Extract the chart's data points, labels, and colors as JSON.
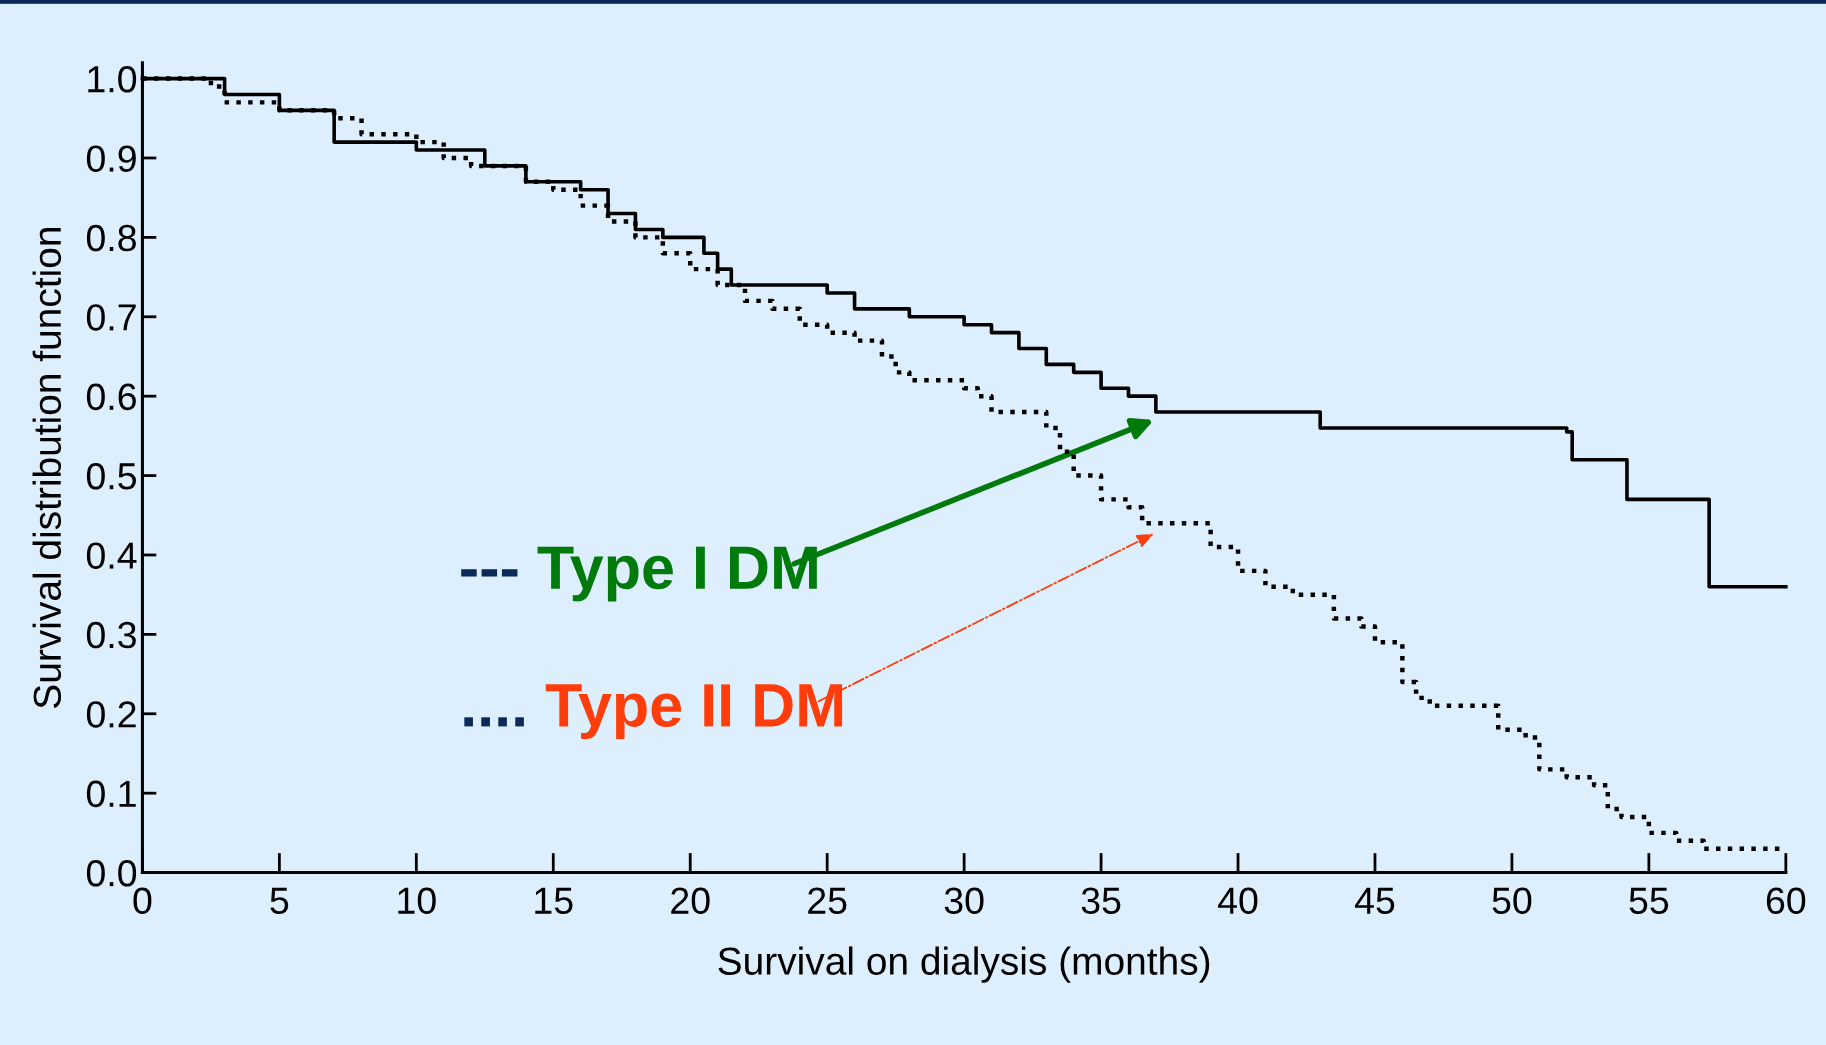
{
  "chart_data": {
    "type": "step",
    "xlabel": "Survival on dialysis (months)",
    "ylabel": "Survival distribution function",
    "xlim": [
      0,
      60
    ],
    "ylim": [
      0,
      1.02
    ],
    "xticks": [
      0,
      5,
      10,
      15,
      20,
      25,
      30,
      35,
      40,
      45,
      50,
      55,
      60
    ],
    "yticks": [
      {
        "value": 0,
        "label": "0.0"
      },
      0.1,
      0.2,
      0.3,
      0.4,
      0.5,
      0.6,
      0.7,
      0.8,
      0.9,
      {
        "value": 1,
        "label": "1.0"
      }
    ],
    "grid": false,
    "legend": false,
    "series": [
      {
        "color": "#000000",
        "line_style": "solid",
        "x": [
          0,
          2,
          3,
          4,
          5,
          6,
          7,
          9,
          10,
          12,
          12.5,
          14,
          16,
          17,
          18,
          19,
          20,
          20.5,
          21,
          21.5,
          24,
          25,
          26,
          28,
          30,
          31,
          32,
          33,
          34,
          35,
          36,
          37,
          42.5,
          43,
          52,
          52.2,
          54,
          54.2,
          57,
          57.2,
          60
        ],
        "values": [
          1.0,
          1.0,
          0.98,
          0.98,
          0.96,
          0.96,
          0.92,
          0.92,
          0.91,
          0.91,
          0.89,
          0.87,
          0.86,
          0.83,
          0.81,
          0.8,
          0.8,
          0.78,
          0.76,
          0.74,
          0.74,
          0.73,
          0.71,
          0.7,
          0.69,
          0.68,
          0.66,
          0.64,
          0.63,
          0.61,
          0.6,
          0.58,
          0.58,
          0.56,
          0.555,
          0.52,
          0.52,
          0.47,
          0.47,
          0.36,
          0.36
        ]
      },
      {
        "color": "#000000",
        "line_style": "dotted",
        "x": [
          0,
          2.5,
          3,
          5,
          6,
          7,
          8,
          10,
          11,
          12,
          14,
          15,
          16,
          17,
          18,
          19,
          20,
          21,
          22,
          23,
          24,
          25,
          26,
          27,
          27.5,
          28,
          30,
          30.5,
          31,
          32,
          33,
          33.5,
          34,
          35,
          36,
          36.5,
          38,
          39,
          40,
          41,
          42,
          43,
          43.5,
          44.5,
          45,
          46,
          46.5,
          47,
          49,
          49.5,
          50.5,
          51,
          52,
          53,
          53.5,
          54,
          55,
          56,
          57,
          58,
          60
        ],
        "values": [
          1.0,
          0.99,
          0.97,
          0.96,
          0.96,
          0.95,
          0.93,
          0.92,
          0.9,
          0.89,
          0.87,
          0.86,
          0.84,
          0.82,
          0.8,
          0.78,
          0.76,
          0.74,
          0.72,
          0.71,
          0.69,
          0.68,
          0.67,
          0.65,
          0.63,
          0.62,
          0.61,
          0.6,
          0.58,
          0.58,
          0.56,
          0.53,
          0.5,
          0.47,
          0.46,
          0.44,
          0.44,
          0.41,
          0.38,
          0.36,
          0.35,
          0.35,
          0.32,
          0.31,
          0.29,
          0.24,
          0.22,
          0.21,
          0.21,
          0.18,
          0.17,
          0.13,
          0.12,
          0.11,
          0.08,
          0.07,
          0.05,
          0.04,
          0.03,
          0.03,
          0.03
        ]
      }
    ],
    "annotations": [
      "--- Type I DM",
      ".... Type II DM"
    ]
  }
}
